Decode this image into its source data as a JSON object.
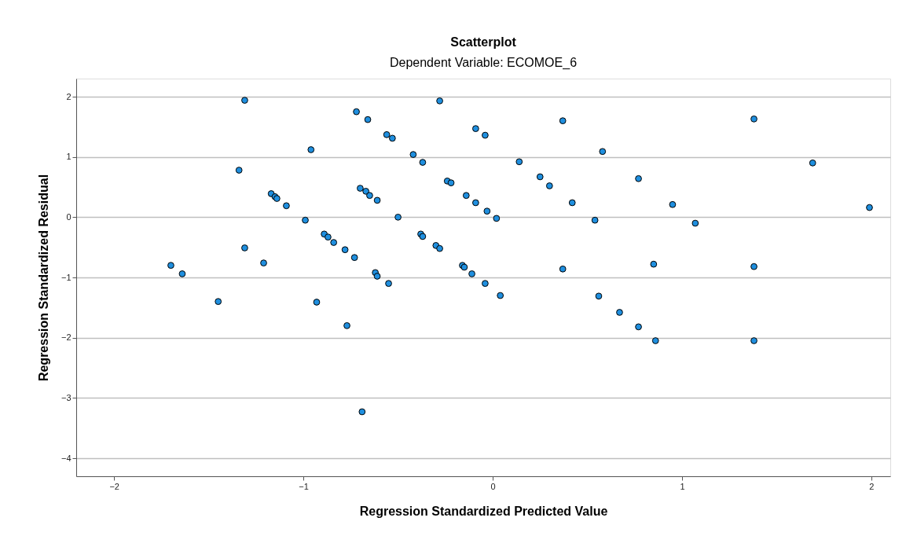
{
  "chart_data": {
    "type": "scatter",
    "title": "Scatterplot",
    "subtitle": "Dependent Variable: ECOMOE_6",
    "xlabel": "Regression Standardized Predicted Value",
    "ylabel": "Regression Standardized Residual",
    "xlim": [
      -2.2,
      2.1
    ],
    "ylim": [
      -4.3,
      2.3
    ],
    "xticks": [
      -2,
      -1,
      0,
      1,
      2
    ],
    "yticks": [
      -4,
      -3,
      -2,
      -1,
      0,
      1,
      2
    ],
    "grid": "y",
    "marker": "circle",
    "series": [
      {
        "color": "#1f8fdf",
        "x": [
          -1.31,
          -0.72,
          -0.66,
          -0.28,
          -0.56,
          -0.53,
          -0.09,
          -0.04,
          -0.96,
          -0.42,
          -0.37,
          -1.34,
          -1.17,
          -1.15,
          -1.14,
          -1.09,
          -0.7,
          -0.67,
          -0.65,
          -0.61,
          -0.24,
          -0.22,
          -0.14,
          -0.09,
          -0.03,
          0.02,
          -0.99,
          -0.5,
          -0.89,
          -0.87,
          -0.84,
          -0.78,
          -0.73,
          -0.38,
          -0.37,
          -0.3,
          -0.28,
          -1.31,
          -1.21,
          -1.7,
          -1.64,
          -0.62,
          -0.61,
          -0.16,
          -0.15,
          -0.11,
          -0.55,
          -0.04,
          -1.45,
          -0.93,
          -0.77,
          -0.69,
          0.37,
          1.38,
          0.58,
          0.14,
          0.25,
          0.3,
          0.77,
          1.69,
          0.42,
          0.95,
          1.99,
          0.54,
          1.07,
          0.37,
          0.85,
          1.38,
          0.04,
          0.56,
          0.67,
          0.77,
          0.86,
          1.38
        ],
        "values": [
          1.94,
          1.75,
          1.62,
          1.93,
          1.37,
          1.31,
          1.47,
          1.36,
          1.12,
          1.04,
          0.91,
          0.78,
          0.39,
          0.34,
          0.31,
          0.19,
          0.48,
          0.43,
          0.36,
          0.28,
          0.6,
          0.57,
          0.36,
          0.24,
          0.1,
          -0.02,
          -0.05,
          0.0,
          -0.28,
          -0.33,
          -0.42,
          -0.54,
          -0.67,
          -0.28,
          -0.32,
          -0.47,
          -0.52,
          -0.51,
          -0.76,
          -0.8,
          -0.94,
          -0.92,
          -0.98,
          -0.8,
          -0.83,
          -0.94,
          -1.1,
          -1.1,
          -1.4,
          -1.41,
          -1.8,
          -3.23,
          1.6,
          1.63,
          1.09,
          0.92,
          0.67,
          0.52,
          0.64,
          0.9,
          0.24,
          0.21,
          0.16,
          -0.05,
          -0.1,
          -0.86,
          -0.78,
          -0.82,
          -1.3,
          -1.31,
          -1.58,
          -1.82,
          -2.05,
          -2.05
        ]
      }
    ]
  }
}
